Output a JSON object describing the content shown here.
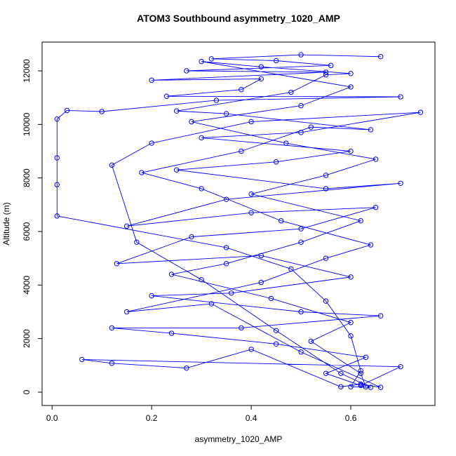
{
  "chart_data": {
    "type": "line",
    "title": "ATOM3 Southbound asymmetry_1020_AMP",
    "x_label": "asymmetry_1020_AMP",
    "y_label": "Altitude (m)",
    "xlim": [
      -0.02,
      0.769
    ],
    "ylim": [
      -498,
      13074
    ],
    "xticks": [
      {
        "value": 0,
        "label": "0.0"
      },
      0.2,
      0.4,
      0.6
    ],
    "yticks": [
      0,
      2000,
      4000,
      6000,
      8000,
      10000,
      12000
    ],
    "series": [
      {
        "color": "#0000ff",
        "x": [
          0.66,
          0.5,
          0.32,
          0.45,
          0.56,
          0.27,
          0.55,
          0.2,
          0.42,
          0.38,
          0.23,
          0.7,
          0.33,
          0.1,
          0.03,
          0.01,
          0.01,
          0.01,
          0.01,
          0.35,
          0.48,
          0.55,
          0.6,
          0.62,
          0.6,
          0.64,
          0.58,
          0.45,
          0.3,
          0.17,
          0.12,
          0.2,
          0.4,
          0.74,
          0.5,
          0.3,
          0.6,
          0.45,
          0.25,
          0.55,
          0.7,
          0.35,
          0.15,
          0.4,
          0.65,
          0.5,
          0.28,
          0.13,
          0.42,
          0.6,
          0.36,
          0.2,
          0.5,
          0.66,
          0.38,
          0.12,
          0.24,
          0.45,
          0.63,
          0.55,
          0.62,
          0.7,
          0.06,
          0.12,
          0.27,
          0.4,
          0.58,
          0.62,
          0.66,
          0.5,
          0.32,
          0.15,
          0.42,
          0.55,
          0.64,
          0.46,
          0.3,
          0.18,
          0.38,
          0.52,
          0.64,
          0.35,
          0.25,
          0.48,
          0.55,
          0.6,
          0.42,
          0.3,
          0.6,
          0.5,
          0.28,
          0.47,
          0.65,
          0.55,
          0.4,
          0.62,
          0.5,
          0.35,
          0.24,
          0.44,
          0.6,
          0.52,
          0.62,
          0.63
        ],
        "values": [
          12530,
          12600,
          12450,
          12380,
          12200,
          12000,
          11950,
          11650,
          11700,
          11300,
          11050,
          11030,
          10900,
          10480,
          10520,
          10200,
          8750,
          7750,
          6580,
          5400,
          4600,
          3400,
          2100,
          800,
          200,
          180,
          700,
          2300,
          4200,
          5600,
          8480,
          9300,
          10100,
          10450,
          9700,
          9500,
          9000,
          8600,
          8300,
          7600,
          7800,
          7200,
          6200,
          6700,
          6900,
          6100,
          5800,
          4800,
          5100,
          4300,
          3700,
          3600,
          3000,
          2850,
          2400,
          2400,
          2200,
          1800,
          1300,
          700,
          250,
          950,
          1220,
          1080,
          900,
          1600,
          200,
          300,
          180,
          1500,
          3300,
          3000,
          4100,
          5000,
          5500,
          6400,
          7600,
          8200,
          9000,
          9900,
          9800,
          10400,
          10500,
          11200,
          11850,
          11900,
          12150,
          12350,
          11400,
          10700,
          10100,
          9300,
          8700,
          8100,
          7400,
          6400,
          5600,
          4800,
          4400,
          3500,
          2600,
          1900,
          700,
          200
        ]
      }
    ]
  }
}
